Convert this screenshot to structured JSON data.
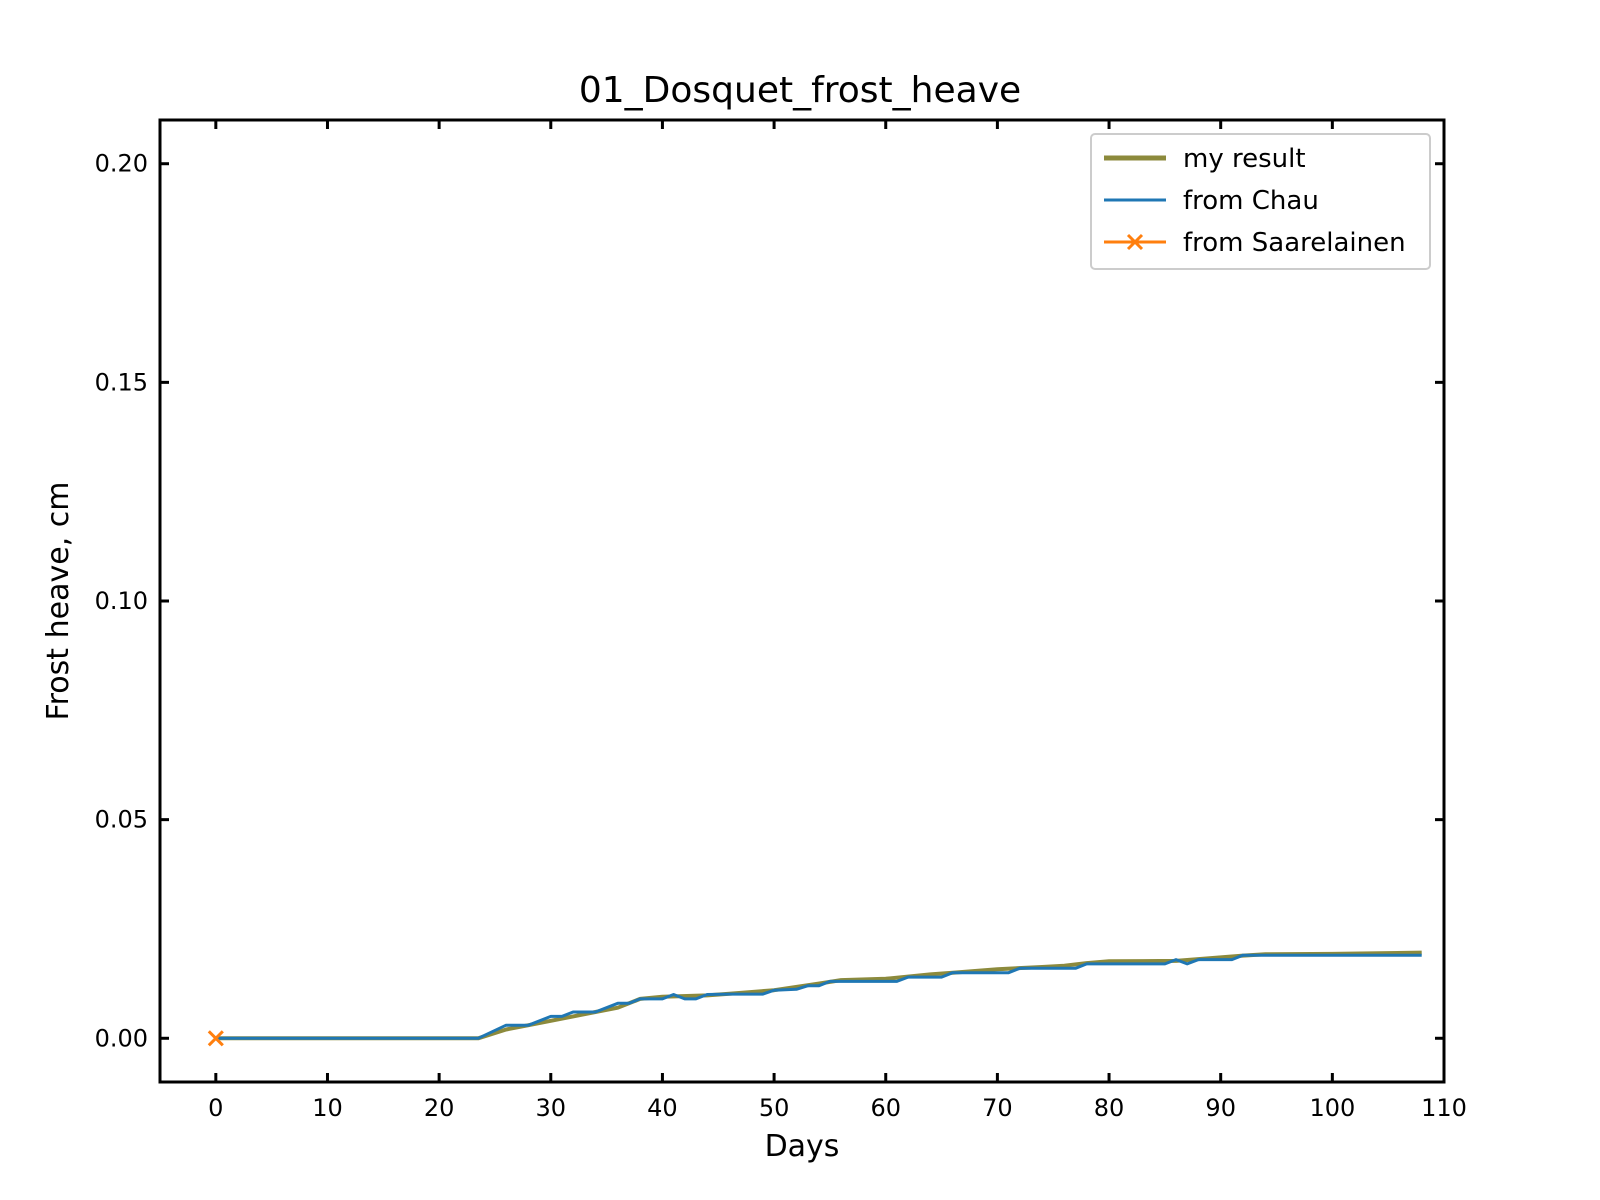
{
  "chart_data": {
    "type": "line",
    "title": "01_Dosquet_frost_heave",
    "xlabel": "Days",
    "ylabel": "Frost heave, cm",
    "xlim": [
      -5,
      110
    ],
    "ylim": [
      -0.01,
      0.21
    ],
    "xticks": [
      0,
      10,
      20,
      30,
      40,
      50,
      60,
      70,
      80,
      90,
      100,
      110
    ],
    "yticks": [
      0.0,
      0.05,
      0.1,
      0.15,
      0.2
    ],
    "xtick_labels": [
      "0",
      "10",
      "20",
      "30",
      "40",
      "50",
      "60",
      "70",
      "80",
      "90",
      "100",
      "110"
    ],
    "ytick_labels": [
      "0.00",
      "0.05",
      "0.10",
      "0.15",
      "0.20"
    ],
    "grid": false,
    "legend_position": "top-right",
    "series": [
      {
        "name": "my result",
        "color": "#8c8a3c",
        "marker": "none",
        "points": [
          [
            0,
            0
          ],
          [
            23.5,
            0
          ],
          [
            26,
            0.002
          ],
          [
            28,
            0.003
          ],
          [
            30,
            0.004
          ],
          [
            32,
            0.005
          ],
          [
            34,
            0.006
          ],
          [
            36,
            0.007
          ],
          [
            38,
            0.009
          ],
          [
            40,
            0.0095
          ],
          [
            44,
            0.0098
          ],
          [
            46,
            0.0102
          ],
          [
            50,
            0.011
          ],
          [
            54,
            0.0125
          ],
          [
            56,
            0.0133
          ],
          [
            60,
            0.0136
          ],
          [
            64,
            0.0146
          ],
          [
            66,
            0.015
          ],
          [
            70,
            0.0158
          ],
          [
            74,
            0.0163
          ],
          [
            76,
            0.0166
          ],
          [
            78,
            0.0172
          ],
          [
            80,
            0.0176
          ],
          [
            86,
            0.0177
          ],
          [
            88,
            0.0181
          ],
          [
            92,
            0.0189
          ],
          [
            94,
            0.0192
          ],
          [
            100,
            0.0193
          ],
          [
            108,
            0.0196
          ]
        ]
      },
      {
        "name": "from Chau",
        "color": "#1f77b4",
        "marker": "none",
        "points": [
          [
            0,
            0
          ],
          [
            23.5,
            0
          ],
          [
            26,
            0.003
          ],
          [
            28,
            0.003
          ],
          [
            30,
            0.005
          ],
          [
            31,
            0.005
          ],
          [
            32,
            0.006
          ],
          [
            34,
            0.006
          ],
          [
            36,
            0.008
          ],
          [
            37,
            0.008
          ],
          [
            38,
            0.009
          ],
          [
            40,
            0.009
          ],
          [
            41,
            0.01
          ],
          [
            42,
            0.009
          ],
          [
            43,
            0.009
          ],
          [
            44,
            0.01
          ],
          [
            46,
            0.0101
          ],
          [
            49,
            0.0101
          ],
          [
            50,
            0.011
          ],
          [
            52,
            0.0112
          ],
          [
            53,
            0.012
          ],
          [
            54,
            0.012
          ],
          [
            55,
            0.013
          ],
          [
            61,
            0.013
          ],
          [
            62,
            0.014
          ],
          [
            65,
            0.014
          ],
          [
            66,
            0.015
          ],
          [
            71,
            0.015
          ],
          [
            72,
            0.016
          ],
          [
            77,
            0.016
          ],
          [
            78,
            0.017
          ],
          [
            85,
            0.017
          ],
          [
            86,
            0.018
          ],
          [
            87,
            0.017
          ],
          [
            88,
            0.018
          ],
          [
            91,
            0.018
          ],
          [
            92,
            0.019
          ],
          [
            108,
            0.019
          ]
        ]
      },
      {
        "name": "from Saarelainen",
        "color": "#ff7f0e",
        "marker": "x",
        "points": [
          [
            0,
            0
          ]
        ]
      }
    ]
  }
}
